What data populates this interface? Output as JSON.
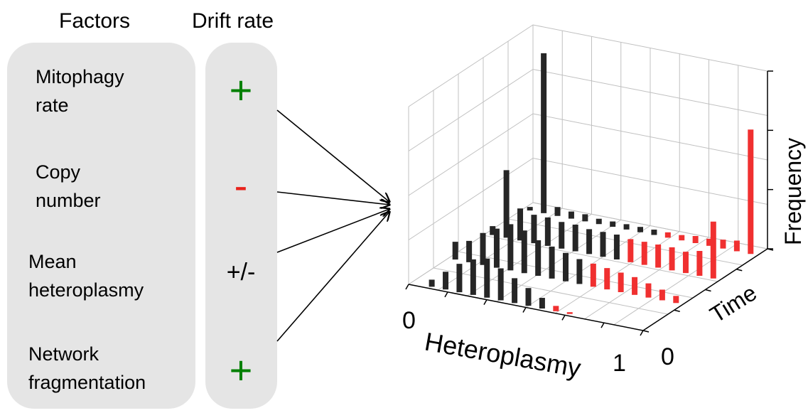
{
  "headers": {
    "factors": "Factors",
    "drift_rate": "Drift rate"
  },
  "factors": [
    {
      "line1": "Mitophagy",
      "line2": "rate",
      "sign": "+",
      "sign_color": "#008000"
    },
    {
      "line1": "Copy",
      "line2": "number",
      "sign": "-",
      "sign_color": "#e8221b"
    },
    {
      "line1": "Mean",
      "line2": "heteroplasmy",
      "sign": "+/-",
      "sign_color": "#000000"
    },
    {
      "line1": "Network",
      "line2": "fragmentation",
      "sign": "+",
      "sign_color": "#008000"
    }
  ],
  "plot": {
    "x_label": "Heteroplasmy",
    "y_label": "Time",
    "z_label": "Frequency",
    "x_tick_0": "0",
    "x_tick_1": "1",
    "y_tick_0": "0",
    "colors": {
      "below_threshold": "#262626",
      "above_threshold": "#f03030",
      "grid": "#c0c0c0"
    }
  }
}
